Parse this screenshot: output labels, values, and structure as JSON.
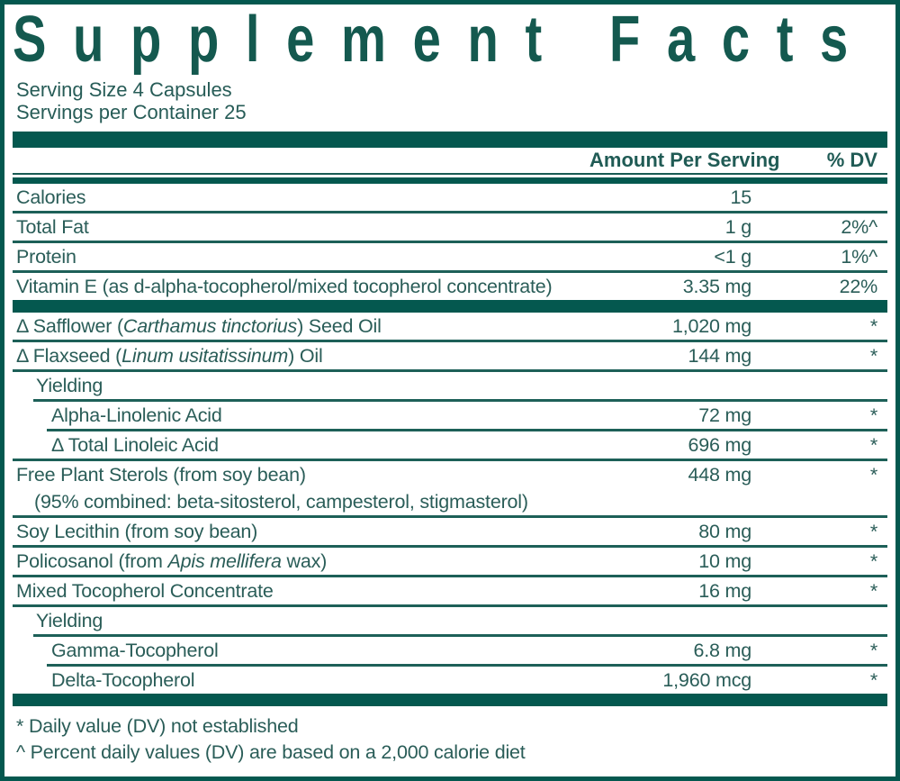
{
  "colors": {
    "teal_bar": "#04584f",
    "text_teal": "#2a5d58",
    "title_teal": "#14594f"
  },
  "title": "Supplement Facts",
  "serving": {
    "size": "Serving Size 4 Capsules",
    "per_container": "Servings per Container 25"
  },
  "header": {
    "amount": "Amount Per Serving",
    "dv": "% DV"
  },
  "rows": [
    {
      "parts": [
        {
          "t": "Calories"
        }
      ],
      "amount": "15",
      "dv": "",
      "indent": 0,
      "rule": "full",
      "bar_after": false
    },
    {
      "parts": [
        {
          "t": "Total Fat"
        }
      ],
      "amount": "1 g",
      "dv": "2%^",
      "indent": 0,
      "rule": "full",
      "bar_after": false
    },
    {
      "parts": [
        {
          "t": "Protein"
        }
      ],
      "amount": "<1 g",
      "dv": "1%^",
      "indent": 0,
      "rule": "full",
      "bar_after": false
    },
    {
      "parts": [
        {
          "t": "Vitamin E (as d-alpha-tocopherol/mixed tocopherol concentrate)"
        }
      ],
      "amount": "3.35 mg",
      "dv": "22%",
      "indent": 0,
      "rule": "none",
      "bar_after": true
    },
    {
      "parts": [
        {
          "t": "Δ Safflower ("
        },
        {
          "t": "Carthamus tinctorius",
          "i": true
        },
        {
          "t": ") Seed Oil"
        }
      ],
      "amount": "1,020 mg",
      "dv": "*",
      "indent": 0,
      "rule": "full",
      "bar_after": false
    },
    {
      "parts": [
        {
          "t": "Δ Flaxseed ("
        },
        {
          "t": "Linum usitatissinum",
          "i": true
        },
        {
          "t": ") Oil"
        }
      ],
      "amount": "144 mg",
      "dv": "*",
      "indent": 0,
      "rule": "full",
      "bar_after": false
    },
    {
      "parts": [
        {
          "t": "Yielding"
        }
      ],
      "amount": "",
      "dv": "",
      "indent": 1,
      "rule": "indent",
      "bar_after": false
    },
    {
      "parts": [
        {
          "t": "Alpha-Linolenic Acid"
        }
      ],
      "amount": "72 mg",
      "dv": "*",
      "indent": 2,
      "rule": "indent",
      "bar_after": false
    },
    {
      "parts": [
        {
          "t": "Δ Total Linoleic Acid"
        }
      ],
      "amount": "696 mg",
      "dv": "*",
      "indent": 2,
      "rule": "full",
      "bar_after": false
    },
    {
      "parts": [
        {
          "t": "Free Plant Sterols (from soy bean)"
        }
      ],
      "note": "(95% combined: beta-sitosterol, campesterol, stigmasterol)",
      "amount": "448 mg",
      "dv": "*",
      "indent": 0,
      "rule": "full",
      "bar_after": false
    },
    {
      "parts": [
        {
          "t": "Soy Lecithin (from soy bean)"
        }
      ],
      "amount": "80 mg",
      "dv": "*",
      "indent": 0,
      "rule": "full",
      "bar_after": false
    },
    {
      "parts": [
        {
          "t": "Policosanol (from "
        },
        {
          "t": "Apis mellifera",
          "i": true
        },
        {
          "t": " wax)"
        }
      ],
      "amount": "10 mg",
      "dv": "*",
      "indent": 0,
      "rule": "full",
      "bar_after": false
    },
    {
      "parts": [
        {
          "t": "Mixed Tocopherol Concentrate"
        }
      ],
      "amount": "16 mg",
      "dv": "*",
      "indent": 0,
      "rule": "full",
      "bar_after": false
    },
    {
      "parts": [
        {
          "t": "Yielding"
        }
      ],
      "amount": "",
      "dv": "",
      "indent": 1,
      "rule": "indent",
      "bar_after": false
    },
    {
      "parts": [
        {
          "t": "Gamma-Tocopherol"
        }
      ],
      "amount": "6.8 mg",
      "dv": "*",
      "indent": 2,
      "rule": "indent",
      "bar_after": false
    },
    {
      "parts": [
        {
          "t": "Delta-Tocopherol"
        }
      ],
      "amount": "1,960 mcg",
      "dv": "*",
      "indent": 2,
      "rule": "none",
      "bar_after": true
    }
  ],
  "footnotes": [
    "* Daily value (DV) not established",
    "^ Percent daily values (DV) are based on a 2,000 calorie diet"
  ]
}
